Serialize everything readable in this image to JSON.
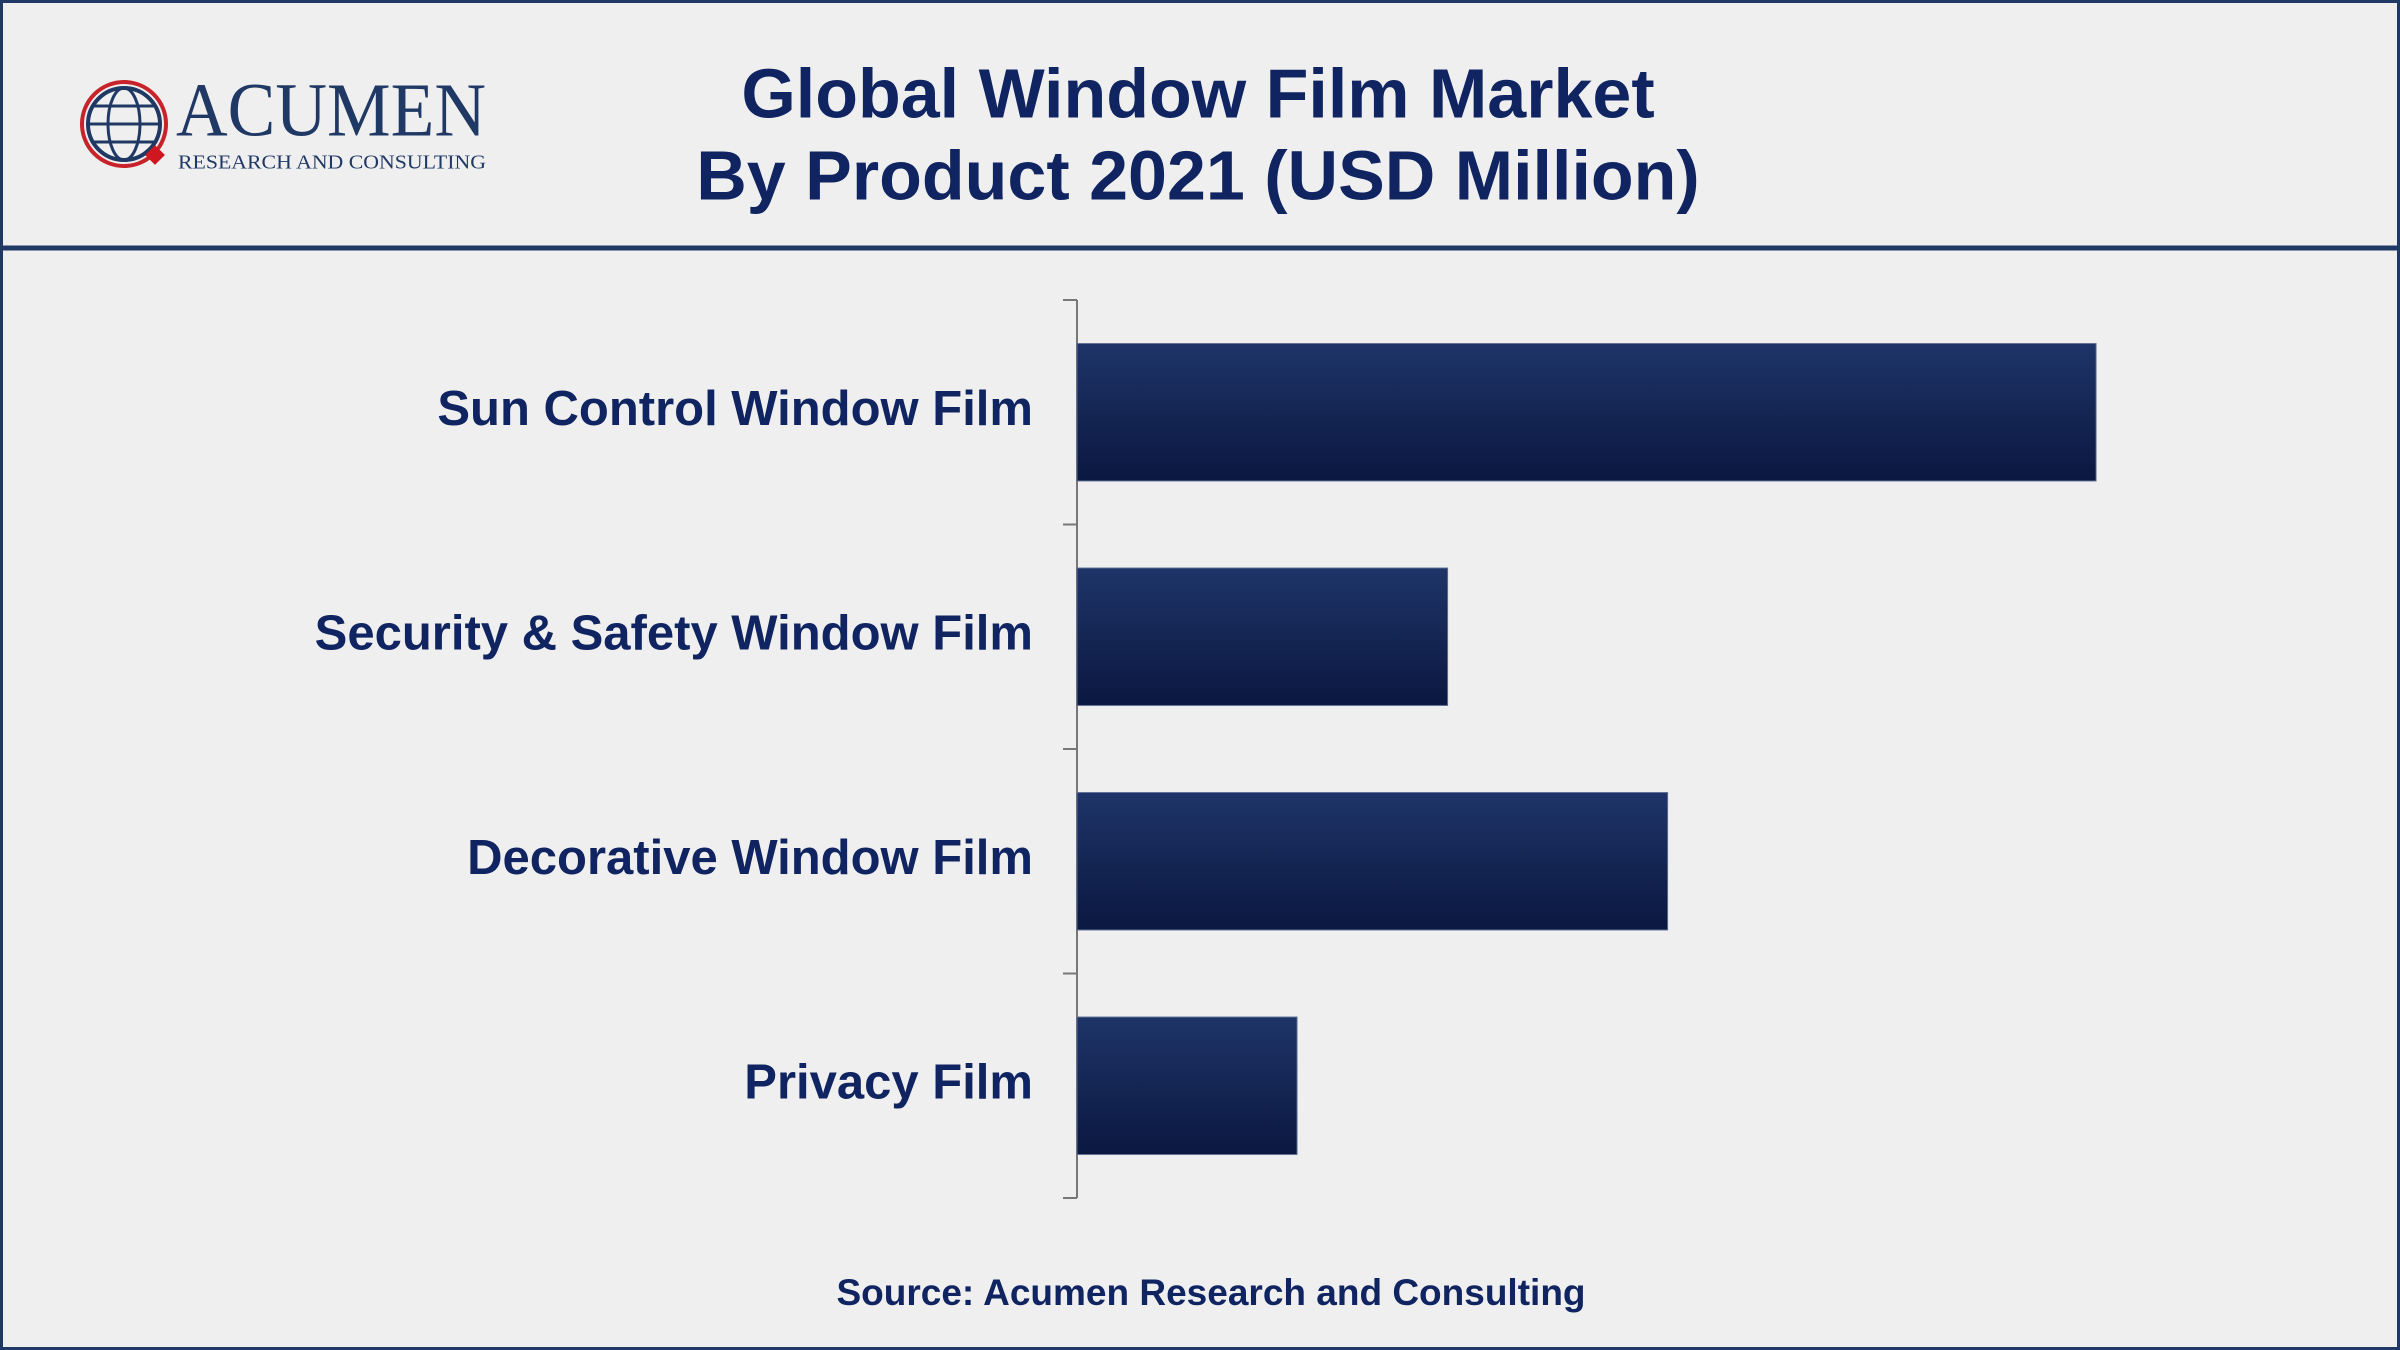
{
  "logo": {
    "name": "ACUMEN",
    "tagline": "RESEARCH AND CONSULTING"
  },
  "chart_data": {
    "type": "hbar",
    "title": [
      "Global Window Film Market",
      "By Product 2021 (USD Million)"
    ],
    "categories": [
      "Sun Control Window Film",
      "Security & Safety Window Film",
      "Decorative Window Film",
      "Privacy Film"
    ],
    "values": [
      88,
      32,
      51,
      19
    ],
    "color": "#1e3468",
    "xlim": [
      0,
      100
    ],
    "source": "Source: Acumen Research and Consulting"
  }
}
